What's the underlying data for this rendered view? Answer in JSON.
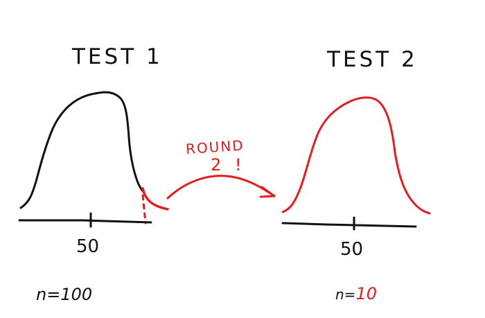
{
  "diagram": {
    "colors": {
      "ink": "#111111",
      "accent": "#e81c1c",
      "background": "#ffffff"
    },
    "test1": {
      "title": "TEST 1",
      "tick_label": "50",
      "n_label": "n=",
      "n_value": "100"
    },
    "test2": {
      "title": "TEST 2",
      "tick_label": "50",
      "n_label": "n=",
      "n_value": "10"
    },
    "arrow": {
      "label_line1": "ROUND",
      "label_line2": "2 !"
    }
  }
}
